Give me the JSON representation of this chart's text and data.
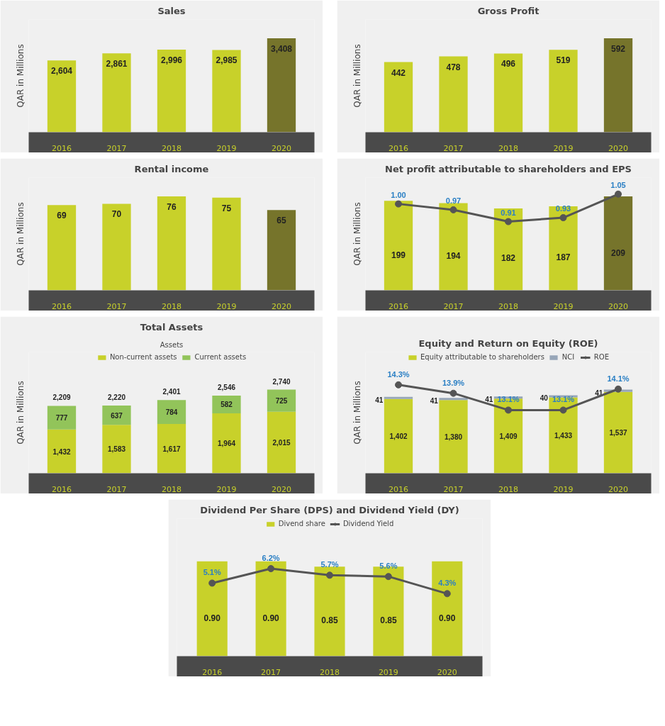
{
  "chart_data": [
    {
      "type": "bar",
      "title": "Sales",
      "ylabel": "QAR in Millions",
      "categories": [
        "2016",
        "2017",
        "2018",
        "2019",
        "2020"
      ],
      "values": [
        2604,
        2861,
        2996,
        2985,
        3408
      ],
      "value_labels": [
        "2,604",
        "2,861",
        "2,996",
        "2,985",
        "3,408"
      ],
      "colors": [
        "#c8d12a",
        "#c8d12a",
        "#c8d12a",
        "#c8d12a",
        "#76742b"
      ]
    },
    {
      "type": "bar",
      "title": "Gross Profit",
      "ylabel": "QAR in Millions",
      "categories": [
        "2016",
        "2017",
        "2018",
        "2019",
        "2020"
      ],
      "values": [
        442,
        478,
        496,
        519,
        592
      ],
      "colors": [
        "#c8d12a",
        "#c8d12a",
        "#c8d12a",
        "#c8d12a",
        "#76742b"
      ],
      "data_labels": true
    },
    {
      "type": "bar",
      "title": "Rental income",
      "ylabel": "QAR in Millions",
      "categories": [
        "2016",
        "2017",
        "2018",
        "2019",
        "2020"
      ],
      "values": [
        69,
        70,
        76,
        75,
        65
      ],
      "colors": [
        "#c8d12a",
        "#c8d12a",
        "#c8d12a",
        "#c8d12a",
        "#76742b"
      ],
      "data_labels": true
    },
    {
      "type": "bar",
      "title": "Net profit attributable to shareholders and EPS",
      "ylabel": "QAR in Millions",
      "categories": [
        "2016",
        "2017",
        "2018",
        "2019",
        "2020"
      ],
      "marker": "circle",
      "data_labels": true,
      "series": [
        {
          "type": "bar",
          "colors": [
            "#c8d12a",
            "#c8d12a",
            "#c8d12a",
            "#c8d12a",
            "#76742b"
          ],
          "values": [
            199,
            194,
            182,
            187,
            209
          ]
        },
        {
          "type": "line",
          "axis": "y2",
          "color": "#555555",
          "values": [
            1.0,
            0.97,
            0.91,
            0.93,
            1.05
          ],
          "value_labels": [
            "1.00",
            "0.97",
            "0.91",
            "0.93",
            "1.05"
          ]
        }
      ]
    },
    {
      "type": "bar",
      "title": "Total Assets",
      "ylabel": "QAR in Millions",
      "categories": [
        "2016",
        "2017",
        "2018",
        "2019",
        "2020"
      ],
      "stacked": true,
      "legend": "top",
      "annotations": [
        "Assets"
      ],
      "totals": [
        "2,209",
        "2,220",
        "2,401",
        "2,546",
        "2,740"
      ],
      "series": [
        {
          "name": "Non-current assets",
          "color": "#c8d12a",
          "values": [
            1432,
            1583,
            1617,
            1964,
            2015
          ],
          "value_labels": [
            "1,432",
            "1,583",
            "1,617",
            "1,964",
            "2,015"
          ]
        },
        {
          "name": "Current assets",
          "color": "#92c45a",
          "values": [
            777,
            637,
            784,
            582,
            725
          ],
          "value_labels": [
            "777",
            "637",
            "784",
            "582",
            "725"
          ]
        }
      ]
    },
    {
      "type": "bar",
      "title": "Equity and Return on Equity (ROE)",
      "ylabel": "QAR in Millions",
      "categories": [
        "2016",
        "2017",
        "2018",
        "2019",
        "2020"
      ],
      "stacked": true,
      "legend": "top",
      "marker": "circle",
      "series": [
        {
          "name": "Equity attributable to shareholders",
          "color": "#c8d12a",
          "values": [
            1402,
            1380,
            1409,
            1433,
            1537
          ],
          "value_labels": [
            "1,402",
            "1,380",
            "1,409",
            "1,433",
            "1,537"
          ]
        },
        {
          "name": "NCI",
          "color": "#97a6b8",
          "values": [
            41,
            41,
            41,
            40,
            41
          ],
          "value_labels": [
            "41",
            "41",
            "41",
            "40",
            "41"
          ]
        },
        {
          "name": "ROE",
          "type": "line",
          "axis": "y2",
          "color": "#555555",
          "values": [
            14.3,
            13.9,
            13.1,
            13.1,
            14.1
          ],
          "value_labels": [
            "14.3%",
            "13.9%",
            "13.1%",
            "13.1%",
            "14.1%"
          ]
        }
      ]
    },
    {
      "type": "bar",
      "title": "Dividend Per Share (DPS) and Dividend Yield (DY)",
      "categories": [
        "2016",
        "2017",
        "2018",
        "2019",
        "2020"
      ],
      "legend": "top",
      "marker": "circle",
      "series": [
        {
          "name": "Divend share",
          "color": "#c8d12a",
          "values": [
            0.9,
            0.9,
            0.85,
            0.85,
            0.9
          ],
          "value_labels": [
            "0.90",
            "0.90",
            "0.85",
            "0.85",
            "0.90"
          ]
        },
        {
          "name": "Dividend Yield",
          "type": "line",
          "axis": "y2",
          "color": "#555555",
          "values": [
            5.1,
            6.2,
            5.7,
            5.6,
            4.3
          ],
          "value_labels": [
            "5.1%",
            "6.2%",
            "5.7%",
            "5.6%",
            "4.3%"
          ]
        }
      ]
    }
  ]
}
